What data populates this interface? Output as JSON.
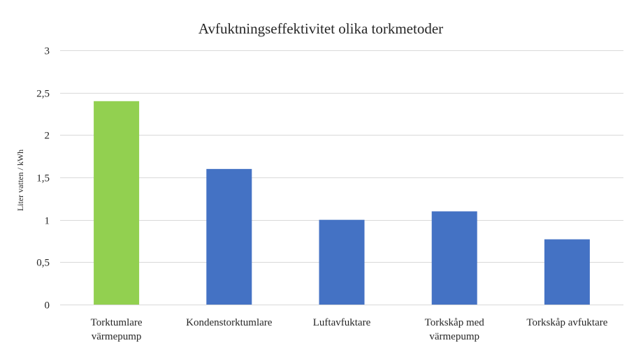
{
  "chart_data": {
    "type": "bar",
    "title": "Avfuktningseffektivitet olika torkmetoder",
    "ylabel": "Liter vatten / kWh",
    "xlabel": "",
    "ylim": [
      0,
      3
    ],
    "yticks": [
      "0",
      "0,5",
      "1",
      "1,5",
      "2",
      "2,5",
      "3"
    ],
    "grid": true,
    "categories": [
      [
        "Torktumlare",
        "värmepump"
      ],
      [
        "Kondenstorktumlare"
      ],
      [
        "Luftavfuktare"
      ],
      [
        "Torkskåp  med",
        "värmepump"
      ],
      [
        "Torkskåp avfuktare"
      ]
    ],
    "values": [
      2.4,
      1.6,
      1.0,
      1.1,
      0.77
    ],
    "colors": [
      "#92d050",
      "#4472c4",
      "#4472c4",
      "#4472c4",
      "#4472c4"
    ]
  }
}
